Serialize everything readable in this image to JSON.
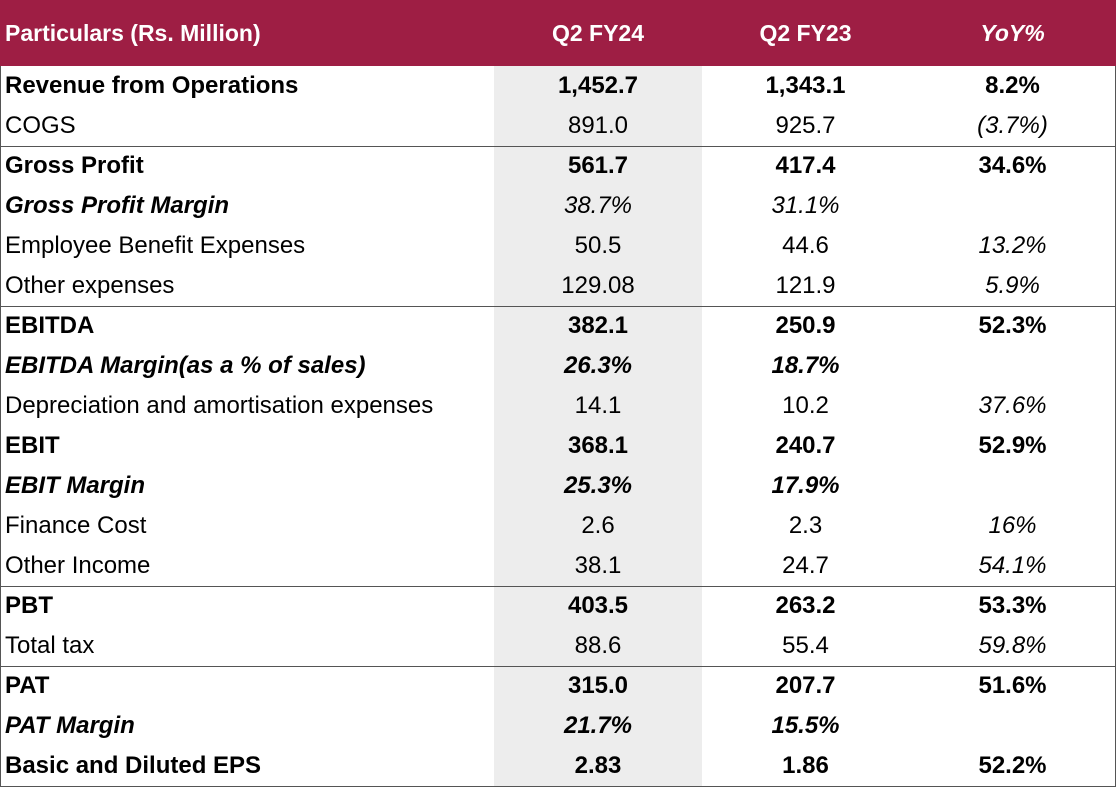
{
  "table": {
    "headers": {
      "particulars": "Particulars (Rs. Million)",
      "q2fy24": "Q2 FY24",
      "q2fy23": "Q2 FY23",
      "yoy": "YoY%"
    },
    "rows": [
      {
        "label": "Revenue from Operations",
        "q2fy24": "1,452.7",
        "q2fy23": "1,343.1",
        "yoy": "8.2%"
      },
      {
        "label": "COGS",
        "q2fy24": "891.0",
        "q2fy23": "925.7",
        "yoy": "(3.7%)"
      },
      {
        "label": "Gross Profit",
        "q2fy24": "561.7",
        "q2fy23": "417.4",
        "yoy": "34.6%"
      },
      {
        "label": "Gross Profit Margin",
        "q2fy24": "38.7%",
        "q2fy23": "31.1%",
        "yoy": ""
      },
      {
        "label": "Employee Benefit Expenses",
        "q2fy24": "50.5",
        "q2fy23": "44.6",
        "yoy": "13.2%"
      },
      {
        "label": "Other expenses",
        "q2fy24": "129.08",
        "q2fy23": "121.9",
        "yoy": "5.9%"
      },
      {
        "label": "EBITDA",
        "q2fy24": "382.1",
        "q2fy23": "250.9",
        "yoy": "52.3%"
      },
      {
        "label": "EBITDA Margin(as a % of sales)",
        "q2fy24": "26.3%",
        "q2fy23": "18.7%",
        "yoy": ""
      },
      {
        "label": "Depreciation and amortisation expenses",
        "q2fy24": "14.1",
        "q2fy23": "10.2",
        "yoy": "37.6%"
      },
      {
        "label": "EBIT",
        "q2fy24": "368.1",
        "q2fy23": "240.7",
        "yoy": "52.9%"
      },
      {
        "label": "EBIT Margin",
        "q2fy24": "25.3%",
        "q2fy23": "17.9%",
        "yoy": ""
      },
      {
        "label": "Finance Cost",
        "q2fy24": "2.6",
        "q2fy23": "2.3",
        "yoy": "16%"
      },
      {
        "label": "Other Income",
        "q2fy24": "38.1",
        "q2fy23": "24.7",
        "yoy": "54.1%"
      },
      {
        "label": "PBT",
        "q2fy24": "403.5",
        "q2fy23": "263.2",
        "yoy": "53.3%"
      },
      {
        "label": "Total tax",
        "q2fy24": "88.6",
        "q2fy23": "55.4",
        "yoy": "59.8%"
      },
      {
        "label": "PAT",
        "q2fy24": "315.0",
        "q2fy23": "207.7",
        "yoy": "51.6%"
      },
      {
        "label": "PAT Margin",
        "q2fy24": "21.7%",
        "q2fy23": "15.5%",
        "yoy": ""
      },
      {
        "label": "Basic and Diluted EPS",
        "q2fy24": "2.83",
        "q2fy23": "1.86",
        "yoy": "52.2%"
      }
    ]
  },
  "colors": {
    "header_bg": "#9e1e44",
    "header_text": "#ffffff",
    "highlight_column_bg": "#ededed",
    "border": "#555555"
  }
}
